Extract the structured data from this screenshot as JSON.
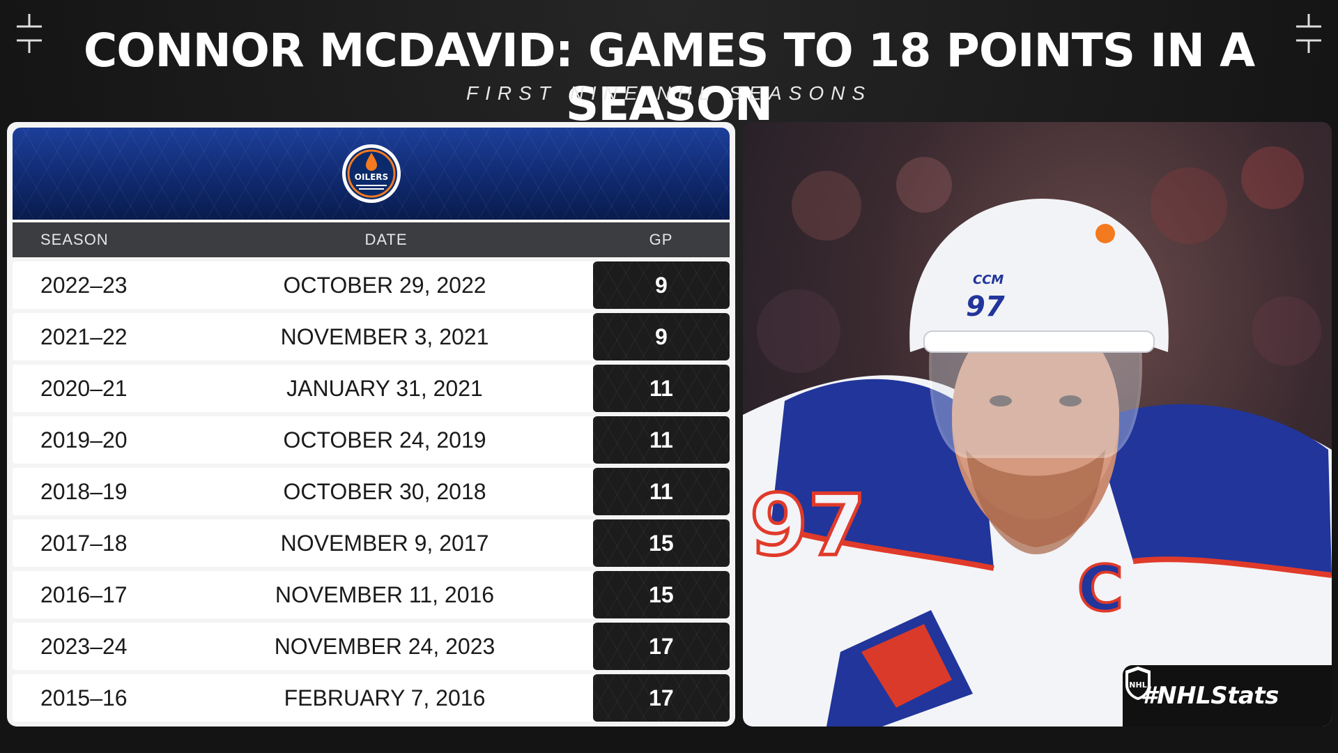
{
  "header": {
    "title": "CONNOR MCDAVID: GAMES TO 18 POINTS IN A SEASON",
    "subtitle": "FIRST NINE NHL SEASONS"
  },
  "team": {
    "logo_text": "OILERS",
    "primary_color": "#1d3f9a",
    "accent_color": "#f47a20"
  },
  "table": {
    "columns": [
      "SEASON",
      "DATE",
      "GP"
    ],
    "rows": [
      {
        "season": "2022–23",
        "date": "OCTOBER 29, 2022",
        "gp": "9"
      },
      {
        "season": "2021–22",
        "date": "NOVEMBER 3, 2021",
        "gp": "9"
      },
      {
        "season": "2020–21",
        "date": "JANUARY 31, 2021",
        "gp": "11"
      },
      {
        "season": "2019–20",
        "date": "OCTOBER 24, 2019",
        "gp": "11"
      },
      {
        "season": "2018–19",
        "date": "OCTOBER 30, 2018",
        "gp": "11"
      },
      {
        "season": "2017–18",
        "date": "NOVEMBER 9, 2017",
        "gp": "15"
      },
      {
        "season": "2016–17",
        "date": "NOVEMBER 11, 2016",
        "gp": "15"
      },
      {
        "season": "2023–24",
        "date": "NOVEMBER 24, 2023",
        "gp": "17"
      },
      {
        "season": "2015–16",
        "date": "FEBRUARY 7, 2016",
        "gp": "17"
      }
    ]
  },
  "photo": {
    "jersey_number": "97",
    "helmet_brand": "CCM"
  },
  "badge": {
    "hashtag": "#NHLStats",
    "league_logo_text": "NHL"
  }
}
